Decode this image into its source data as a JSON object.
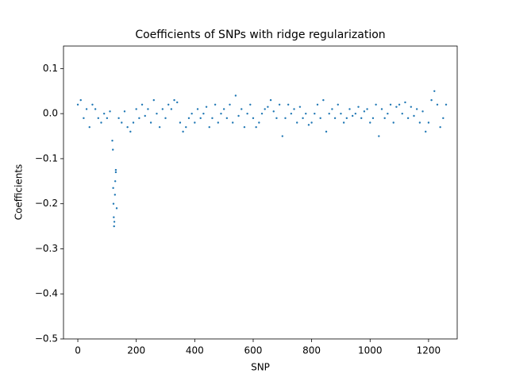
{
  "chart_data": {
    "type": "scatter",
    "title": "Coefficients of SNPs with ridge regularization",
    "x_label": "SNP",
    "y_label": "Coefficients",
    "color": "#1f77b4",
    "xlim": [
      -49,
      1298
    ],
    "ylim": [
      -0.5,
      0.15
    ],
    "xticks": [
      0,
      200,
      400,
      600,
      800,
      1000,
      1200
    ],
    "yticks": [
      {
        "value": -0.5,
        "label": "−0.5"
      },
      {
        "value": -0.4,
        "label": "−0.4"
      },
      {
        "value": -0.3,
        "label": "−0.3"
      },
      {
        "value": -0.2,
        "label": "−0.2"
      },
      {
        "value": -0.1,
        "label": "−0.1"
      },
      {
        "value": 0,
        "label": "0.0"
      },
      0.1
    ],
    "x": [
      0,
      10,
      20,
      30,
      40,
      50,
      60,
      70,
      80,
      90,
      100,
      110,
      120,
      130,
      140,
      150,
      160,
      170,
      180,
      190,
      200,
      210,
      220,
      230,
      240,
      250,
      260,
      270,
      280,
      290,
      300,
      310,
      320,
      330,
      340,
      350,
      360,
      370,
      380,
      390,
      400,
      410,
      420,
      430,
      440,
      450,
      460,
      470,
      480,
      490,
      500,
      510,
      520,
      530,
      540,
      550,
      560,
      570,
      580,
      590,
      600,
      610,
      620,
      630,
      640,
      650,
      660,
      670,
      680,
      690,
      700,
      710,
      720,
      730,
      740,
      750,
      760,
      770,
      780,
      790,
      800,
      810,
      820,
      830,
      840,
      850,
      860,
      870,
      880,
      890,
      900,
      910,
      920,
      930,
      940,
      950,
      960,
      970,
      980,
      990,
      1000,
      1010,
      1020,
      1030,
      1040,
      1050,
      1060,
      1070,
      1080,
      1090,
      1100,
      1110,
      1120,
      1130,
      1140,
      1150,
      1160,
      1170,
      1180,
      1190,
      1200,
      1210,
      1220,
      1230,
      1240,
      1250,
      1260,
      118,
      121,
      122,
      123,
      124,
      125,
      127,
      128,
      130,
      133
    ],
    "values": [
      0.02,
      0.03,
      -0.01,
      0.01,
      -0.03,
      0.02,
      0.01,
      -0.01,
      -0.02,
      0.0,
      -0.01,
      0.005,
      -0.08,
      -0.13,
      -0.01,
      -0.02,
      0.005,
      -0.03,
      -0.04,
      -0.02,
      0.01,
      -0.01,
      0.02,
      -0.005,
      0.01,
      -0.02,
      0.03,
      0.0,
      -0.03,
      0.01,
      -0.01,
      0.02,
      0.01,
      0.03,
      0.025,
      -0.02,
      -0.04,
      -0.03,
      -0.01,
      0.0,
      -0.02,
      0.01,
      -0.01,
      0.0,
      0.015,
      -0.03,
      -0.01,
      0.02,
      -0.02,
      0.0,
      0.01,
      -0.01,
      0.02,
      -0.02,
      0.04,
      -0.005,
      0.01,
      -0.03,
      0.0,
      0.02,
      -0.01,
      -0.03,
      -0.02,
      0.0,
      0.01,
      0.015,
      0.03,
      0.005,
      -0.01,
      0.02,
      -0.05,
      -0.01,
      0.02,
      0.0,
      0.01,
      -0.02,
      0.015,
      -0.01,
      0.0,
      -0.025,
      -0.02,
      0.0,
      0.02,
      -0.01,
      0.03,
      -0.04,
      0.0,
      0.01,
      -0.01,
      0.02,
      0.0,
      -0.02,
      -0.01,
      0.01,
      -0.005,
      0.0,
      0.015,
      -0.01,
      0.005,
      0.01,
      -0.02,
      -0.01,
      0.02,
      -0.05,
      0.01,
      -0.01,
      0.0,
      0.02,
      -0.02,
      0.015,
      0.02,
      0.0,
      0.025,
      -0.01,
      0.015,
      -0.005,
      0.01,
      -0.02,
      0.005,
      -0.04,
      -0.02,
      0.03,
      0.05,
      0.02,
      -0.03,
      -0.01,
      0.02,
      -0.06,
      -0.165,
      -0.2,
      -0.23,
      -0.25,
      -0.24,
      -0.18,
      -0.15,
      -0.125,
      -0.21
    ]
  }
}
